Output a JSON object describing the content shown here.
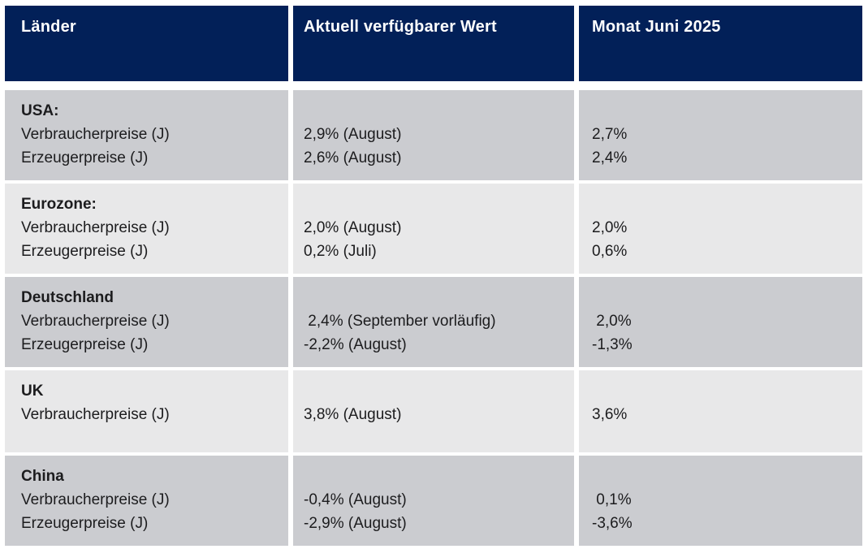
{
  "header": {
    "columns": [
      "Länder",
      "Aktuell verfügbarer Wert",
      "Monat Juni 2025"
    ]
  },
  "rows": [
    {
      "country": "USA:",
      "shade": "dark",
      "entries": [
        {
          "label": "Verbraucherpreise (J)",
          "value": "2,9% (August)",
          "monat": "2,7%"
        },
        {
          "label": "Erzeugerpreise (J)",
          "value": "2,6% (August)",
          "monat": "2,4%"
        }
      ]
    },
    {
      "country": "Eurozone:",
      "shade": "light",
      "entries": [
        {
          "label": "Verbraucherpreise (J)",
          "value": "2,0% (August)",
          "monat": "2,0%"
        },
        {
          "label": "Erzeugerpreise (J)",
          "value": "0,2% (Juli)",
          "monat": "0,6%"
        }
      ]
    },
    {
      "country": "Deutschland",
      "shade": "dark",
      "entries": [
        {
          "label": "Verbraucherpreise (J)",
          "value": " 2,4% (September vorläufig)",
          "monat": " 2,0%"
        },
        {
          "label": "Erzeugerpreise (J)",
          "value": "-2,2% (August)",
          "monat": "-1,3%"
        }
      ]
    },
    {
      "country": "UK",
      "shade": "light",
      "entries": [
        {
          "label": "Verbraucherpreise (J)",
          "value": "3,8% (August)",
          "monat": "3,6%"
        }
      ]
    },
    {
      "country": "China",
      "shade": "dark",
      "entries": [
        {
          "label": "Verbraucherpreise (J)",
          "value": "-0,4% (August)",
          "monat": " 0,1%"
        },
        {
          "label": "Erzeugerpreise (J)",
          "value": "-2,9% (August)",
          "monat": "-3,6%"
        }
      ]
    }
  ],
  "colors": {
    "header_bg": "#022058",
    "header_text": "#ffffff",
    "row_dark": "#cbccd0",
    "row_light": "#e8e8e9",
    "text": "#1c1c1e",
    "background": "#ffffff"
  }
}
